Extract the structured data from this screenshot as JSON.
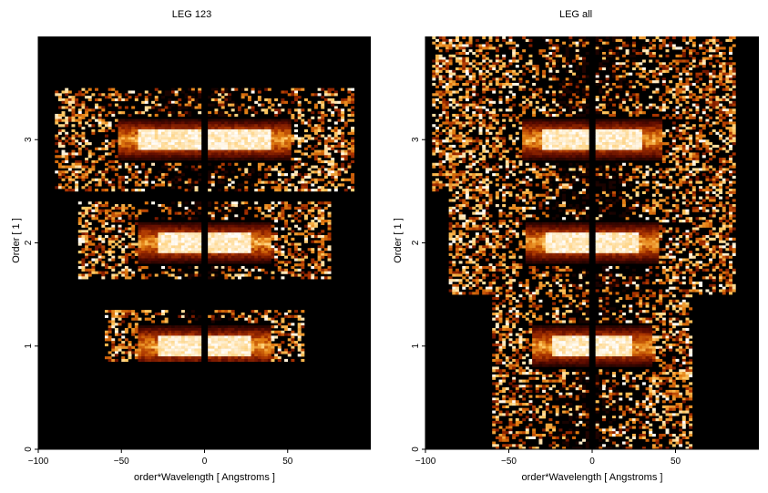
{
  "chart_data": [
    {
      "type": "heatmap",
      "title": "LEG 123",
      "xlabel": "order*Wavelength [ Angstroms ]",
      "ylabel": "Order [ 1 ]",
      "xlim": [
        -100,
        100
      ],
      "ylim": [
        0,
        4
      ],
      "xticks": [
        -100,
        -50,
        0,
        50
      ],
      "yticks": [
        0,
        1,
        2,
        3
      ],
      "colormap": [
        "#000000",
        "#5a0a00",
        "#a83200",
        "#e07a10",
        "#ffc860",
        "#ffffff"
      ],
      "bands": [
        {
          "order": 1,
          "y_range": [
            0.85,
            1.35
          ],
          "x_range": [
            -60,
            60
          ],
          "core_halfwidth": 28,
          "gap": [
            -1.5,
            1.5
          ]
        },
        {
          "order": 2,
          "y_range": [
            1.65,
            2.4
          ],
          "x_range": [
            -75,
            75
          ],
          "core_halfwidth": 28,
          "gap": [
            -1.5,
            1.5
          ]
        },
        {
          "order": 3,
          "y_range": [
            2.5,
            3.5
          ],
          "x_range": [
            -90,
            90
          ],
          "core_halfwidth": 40,
          "gap": [
            -1.5,
            1.5
          ]
        }
      ]
    },
    {
      "type": "heatmap",
      "title": "LEG all",
      "xlabel": "order*Wavelength [ Angstroms ]",
      "ylabel": "Order [ 1 ]",
      "xlim": [
        -100,
        100
      ],
      "ylim": [
        0,
        4
      ],
      "xticks": [
        -100,
        -50,
        0,
        50
      ],
      "yticks": [
        0,
        1,
        2,
        3
      ],
      "colormap": [
        "#000000",
        "#5a0a00",
        "#a83200",
        "#e07a10",
        "#ffc860",
        "#ffffff"
      ],
      "bands": [
        {
          "order": 1,
          "y_range": [
            0,
            1.5
          ],
          "x_range": [
            -60,
            60
          ],
          "core_halfwidth": 25,
          "gap": [
            -1.5,
            1.5
          ]
        },
        {
          "order": 2,
          "y_range": [
            1.5,
            2.5
          ],
          "x_range": [
            -85,
            85
          ],
          "core_halfwidth": 28,
          "gap": [
            -1.5,
            1.5
          ]
        },
        {
          "order": 3,
          "y_range": [
            2.5,
            4.0
          ],
          "x_range": [
            -95,
            85
          ],
          "core_halfwidth": 30,
          "gap": [
            -1.5,
            1.5
          ]
        }
      ]
    }
  ]
}
